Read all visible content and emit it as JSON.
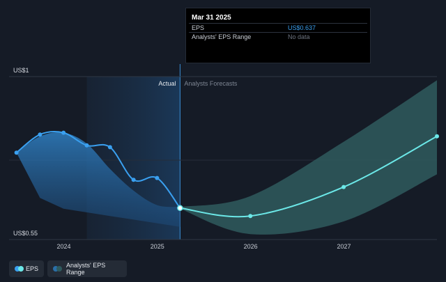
{
  "tooltip": {
    "title": "Mar 31 2025",
    "rows": [
      {
        "label": "EPS",
        "value": "US$0.637"
      },
      {
        "label": "Analysts' EPS Range",
        "value": "No data"
      }
    ]
  },
  "legend": {
    "eps_label": "EPS",
    "range_label": "Analysts' EPS Range"
  },
  "colors": {
    "background": "#151b26",
    "actual_line": "#3aa0f0",
    "forecast_line": "#6ce8e8",
    "actual_band": "#2a6fa8",
    "forecast_band": "#2f5a5e",
    "grid": "#2f3744"
  },
  "chart_data": {
    "type": "line",
    "ylim": [
      0.55,
      1.0
    ],
    "x_range": [
      "2023-06-01",
      "2027-12-31"
    ],
    "y_tick_labels": [
      "US$1",
      "US$0.55"
    ],
    "x_tick_labels": [
      "2024",
      "2025",
      "2026",
      "2027"
    ],
    "region_labels": {
      "actual": "Actual",
      "forecast": "Analysts Forecasts"
    },
    "divider_date": "2025-03-31",
    "series": [
      {
        "name": "EPS",
        "points": [
          {
            "date": "2023-06-30",
            "value": 0.79
          },
          {
            "date": "2023-09-30",
            "value": 0.84
          },
          {
            "date": "2023-12-31",
            "value": 0.845
          },
          {
            "date": "2024-03-31",
            "value": 0.81
          },
          {
            "date": "2024-06-30",
            "value": 0.805
          },
          {
            "date": "2024-09-30",
            "value": 0.715
          },
          {
            "date": "2024-12-31",
            "value": 0.72
          },
          {
            "date": "2025-03-31",
            "value": 0.637
          }
        ]
      },
      {
        "name": "Analysts' EPS Range",
        "points": [
          {
            "date": "2025-03-31",
            "value": 0.637
          },
          {
            "date": "2025-12-31",
            "value": 0.615
          },
          {
            "date": "2026-12-31",
            "value": 0.695
          },
          {
            "date": "2027-12-31",
            "value": 0.835
          }
        ]
      }
    ],
    "actual_band": {
      "upper": [
        {
          "date": "2023-06-30",
          "value": 0.79
        },
        {
          "date": "2023-09-30",
          "value": 0.835
        },
        {
          "date": "2023-12-31",
          "value": 0.845
        },
        {
          "date": "2024-03-31",
          "value": 0.815
        },
        {
          "date": "2024-06-30",
          "value": 0.745
        },
        {
          "date": "2024-09-30",
          "value": 0.685
        },
        {
          "date": "2024-12-31",
          "value": 0.645
        },
        {
          "date": "2025-03-31",
          "value": 0.64
        }
      ],
      "lower": [
        {
          "date": "2025-03-31",
          "value": 0.585
        },
        {
          "date": "2024-12-31",
          "value": 0.595
        },
        {
          "date": "2024-09-30",
          "value": 0.605
        },
        {
          "date": "2024-06-30",
          "value": 0.615
        },
        {
          "date": "2024-03-31",
          "value": 0.625
        },
        {
          "date": "2023-12-31",
          "value": 0.635
        },
        {
          "date": "2023-09-30",
          "value": 0.665
        },
        {
          "date": "2023-06-30",
          "value": 0.79
        }
      ]
    },
    "forecast_band": {
      "upper": [
        {
          "date": "2025-03-31",
          "value": 0.64
        },
        {
          "date": "2025-12-31",
          "value": 0.67
        },
        {
          "date": "2026-12-31",
          "value": 0.82
        },
        {
          "date": "2027-12-31",
          "value": 0.99
        }
      ],
      "lower": [
        {
          "date": "2027-12-31",
          "value": 0.73
        },
        {
          "date": "2026-12-31",
          "value": 0.6
        },
        {
          "date": "2025-12-31",
          "value": 0.565
        },
        {
          "date": "2025-03-31",
          "value": 0.635
        }
      ]
    }
  }
}
